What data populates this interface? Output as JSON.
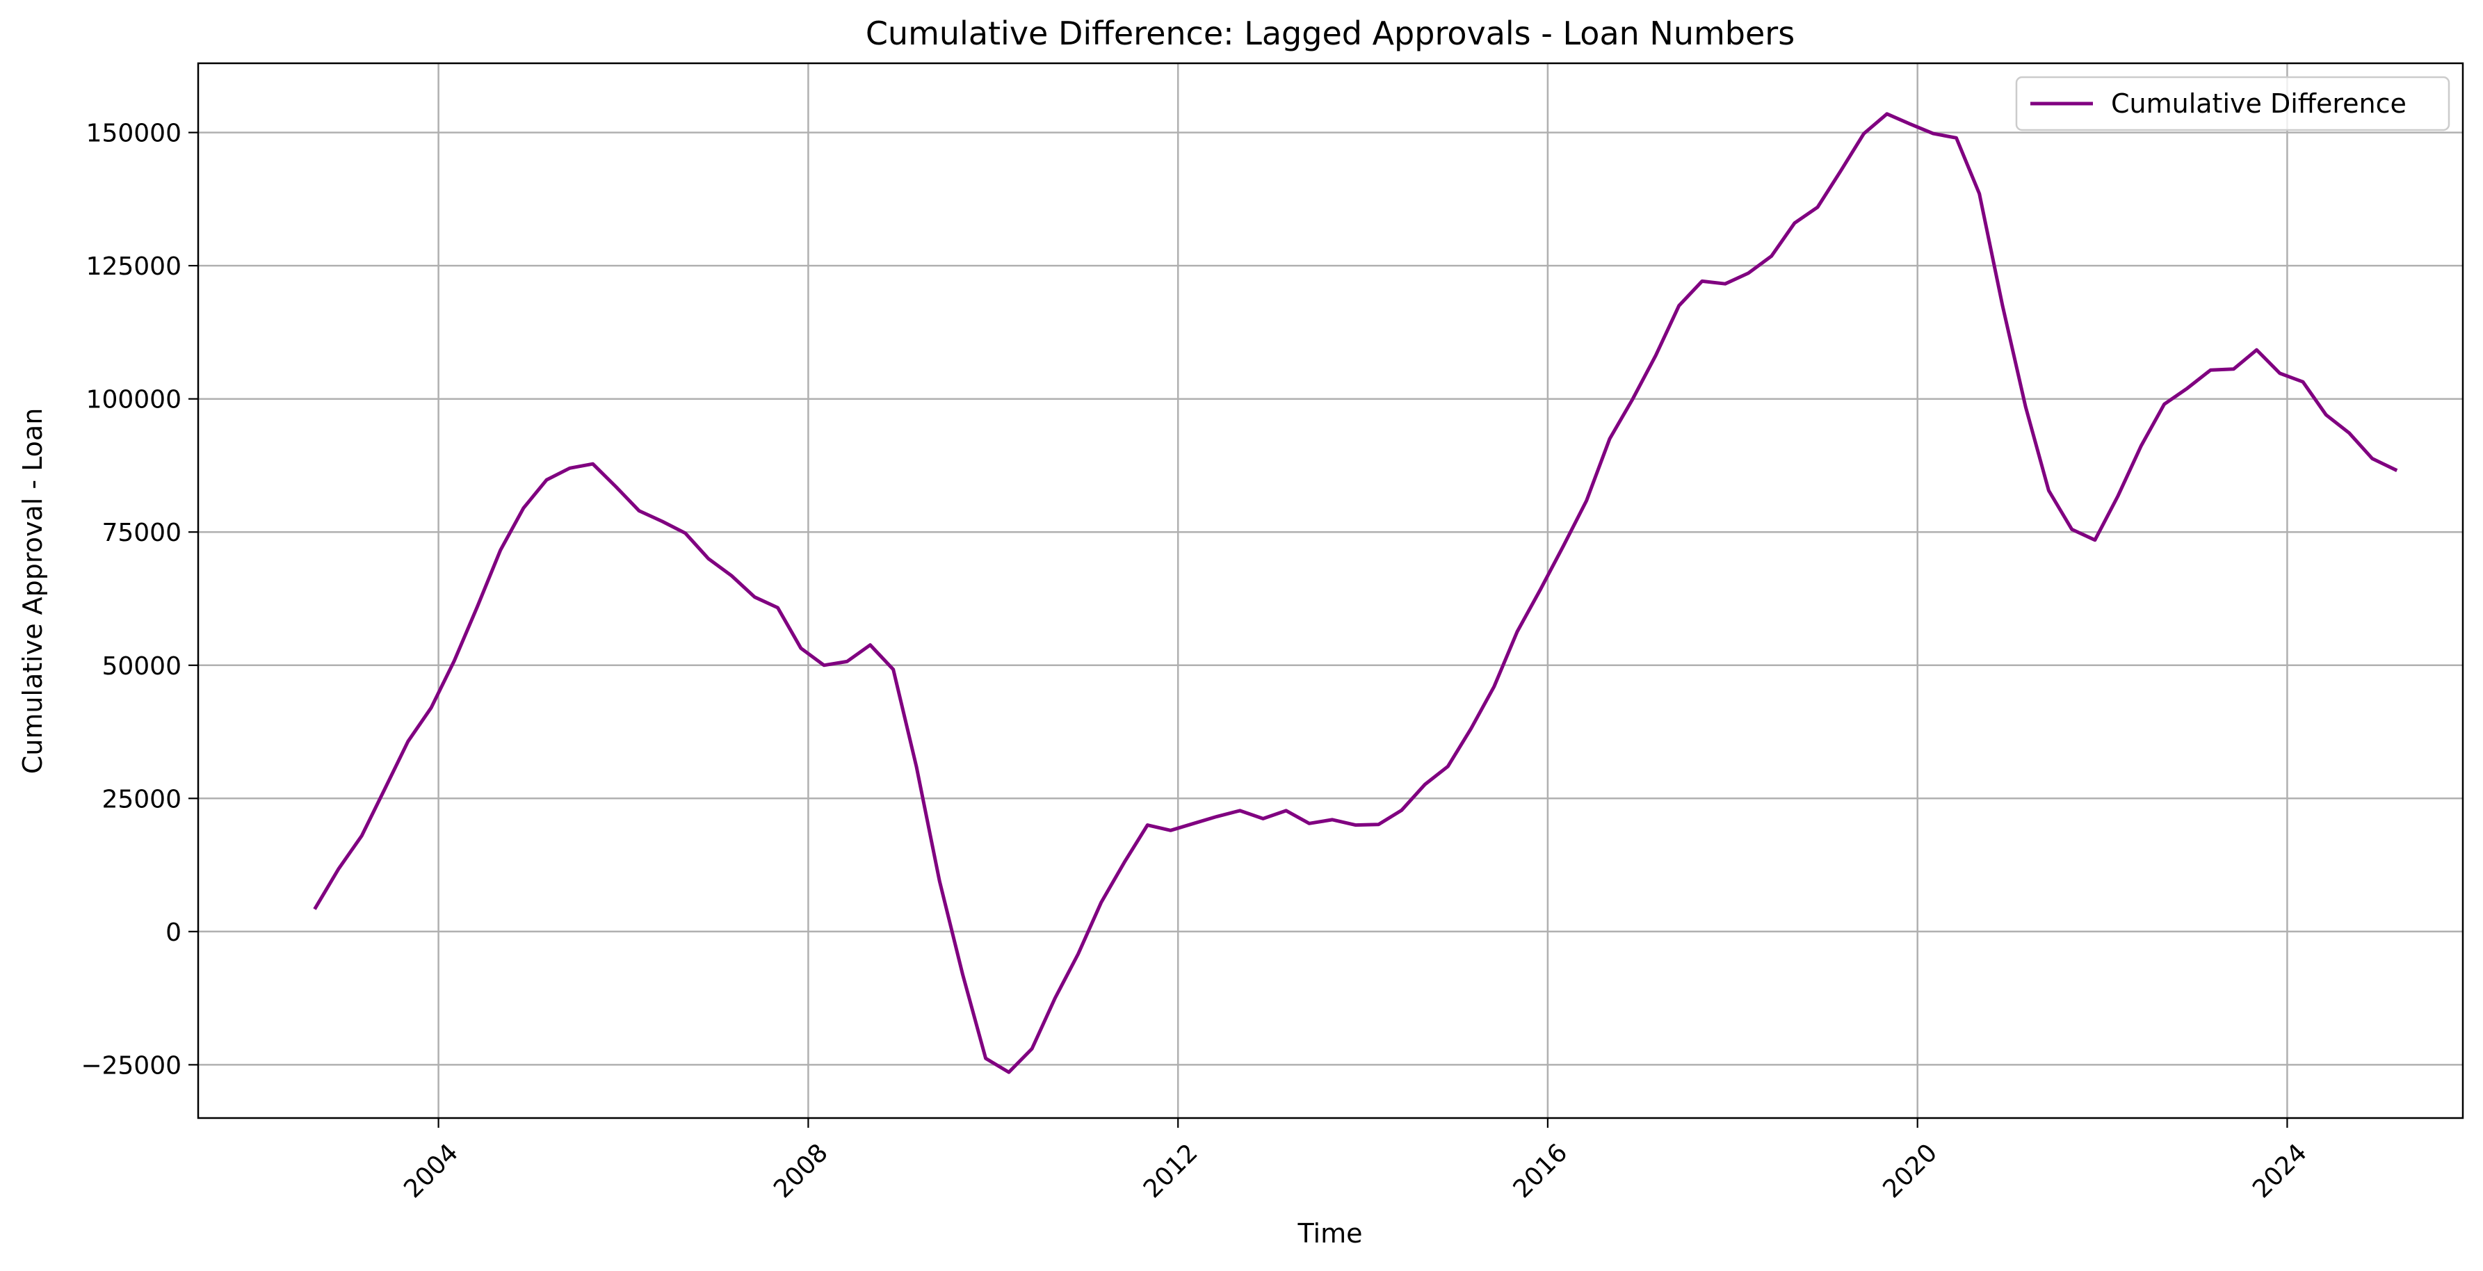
{
  "chart_data": {
    "type": "line",
    "title": "Cumulative Difference: Lagged Approvals - Loan Numbers",
    "xlabel": "Time",
    "ylabel": "Cumulative Approval - Loan",
    "xlim": [
      2001.4,
      2025.9
    ],
    "ylim": [
      -35000,
      163000
    ],
    "x_ticks": [
      2004,
      2008,
      2012,
      2016,
      2020,
      2024
    ],
    "x_tick_labels": [
      "2004",
      "2008",
      "2012",
      "2016",
      "2020",
      "2024"
    ],
    "y_ticks": [
      -25000,
      0,
      25000,
      50000,
      75000,
      100000,
      125000,
      150000
    ],
    "y_tick_labels": [
      "−25000",
      "0",
      "25000",
      "50000",
      "75000",
      "100000",
      "125000",
      "150000"
    ],
    "grid": true,
    "legend_position": "top-right",
    "series": [
      {
        "name": "Cumulative Difference",
        "color": "#800080",
        "x": [
          2002.67,
          2002.92,
          2003.17,
          2003.42,
          2003.67,
          2003.92,
          2004.17,
          2004.42,
          2004.67,
          2004.92,
          2005.17,
          2005.42,
          2005.67,
          2005.92,
          2006.17,
          2006.42,
          2006.67,
          2006.92,
          2007.17,
          2007.42,
          2007.67,
          2007.92,
          2008.17,
          2008.42,
          2008.67,
          2008.92,
          2009.17,
          2009.42,
          2009.67,
          2009.92,
          2010.17,
          2010.42,
          2010.67,
          2010.92,
          2011.17,
          2011.42,
          2011.67,
          2011.92,
          2012.17,
          2012.42,
          2012.67,
          2012.92,
          2013.17,
          2013.42,
          2013.67,
          2013.92,
          2014.17,
          2014.42,
          2014.67,
          2014.92,
          2015.17,
          2015.42,
          2015.67,
          2015.92,
          2016.17,
          2016.42,
          2016.67,
          2016.92,
          2017.17,
          2017.42,
          2017.67,
          2017.92,
          2018.17,
          2018.42,
          2018.67,
          2018.92,
          2019.17,
          2019.42,
          2019.67,
          2019.92,
          2020.17,
          2020.42,
          2020.67,
          2020.92,
          2021.17,
          2021.42,
          2021.67,
          2021.92,
          2022.17,
          2022.42,
          2022.67,
          2022.92,
          2023.17,
          2023.42,
          2023.67,
          2023.92,
          2024.17,
          2024.42,
          2024.67,
          2024.92,
          2025.17
        ],
        "values": [
          4500,
          11800,
          18000,
          26800,
          35700,
          42000,
          50800,
          61000,
          71600,
          79500,
          84800,
          87000,
          87800,
          83500,
          79000,
          77000,
          74800,
          70000,
          66800,
          62800,
          60800,
          53200,
          50000,
          50700,
          53800,
          49200,
          31000,
          9500,
          -8000,
          -23800,
          -26400,
          -22000,
          -12500,
          -4200,
          5500,
          13000,
          20000,
          19000,
          20300,
          21600,
          22700,
          21200,
          22700,
          20300,
          21000,
          20000,
          20100,
          22800,
          27600,
          31000,
          38100,
          46000,
          56300,
          64200,
          72400,
          80900,
          92500,
          100000,
          108200,
          117500,
          122100,
          121600,
          123600,
          126800,
          133000,
          136000,
          142800,
          149800,
          153500,
          151600,
          149800,
          149000,
          138500,
          117500,
          98500,
          82800,
          75500,
          73500,
          81800,
          91200,
          99000,
          102000,
          105400,
          105600,
          109200,
          104800,
          103200,
          97000,
          93600,
          88800,
          86700
        ]
      }
    ]
  }
}
